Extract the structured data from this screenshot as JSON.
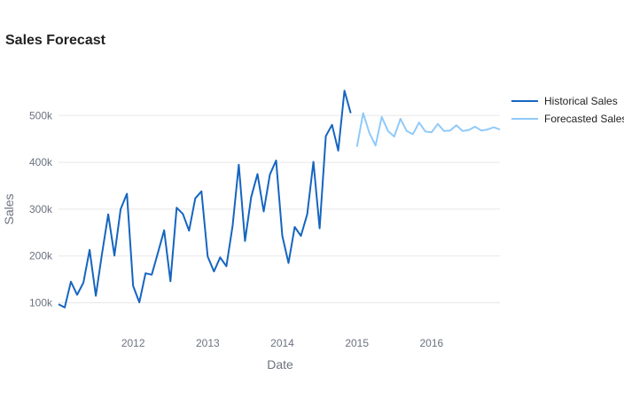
{
  "chart_data": {
    "type": "line",
    "title": "Sales Forecast",
    "xlabel": "Date",
    "ylabel": "Sales",
    "xlim": [
      "2011-01",
      "2016-12"
    ],
    "ylim": [
      65000,
      580000
    ],
    "x_ticks": [
      {
        "label": "2012",
        "date": "2012-01"
      },
      {
        "label": "2013",
        "date": "2013-01"
      },
      {
        "label": "2014",
        "date": "2014-01"
      },
      {
        "label": "2015",
        "date": "2015-01"
      },
      {
        "label": "2016",
        "date": "2016-01"
      }
    ],
    "y_ticks": [
      {
        "label": "100k",
        "value": 100000
      },
      {
        "label": "200k",
        "value": 200000
      },
      {
        "label": "300k",
        "value": 300000
      },
      {
        "label": "400k",
        "value": 400000
      },
      {
        "label": "500k",
        "value": 500000
      }
    ],
    "grid": true,
    "legend": "right",
    "series": [
      {
        "name": "Historical Sales",
        "color": "#1565c0",
        "points": [
          [
            "2011-01",
            97000
          ],
          [
            "2011-02",
            90000
          ],
          [
            "2011-03",
            145000
          ],
          [
            "2011-04",
            117000
          ],
          [
            "2011-05",
            143000
          ],
          [
            "2011-06",
            213000
          ],
          [
            "2011-07",
            115000
          ],
          [
            "2011-08",
            205000
          ],
          [
            "2011-09",
            289000
          ],
          [
            "2011-10",
            201000
          ],
          [
            "2011-11",
            300000
          ],
          [
            "2011-12",
            333000
          ],
          [
            "2012-01",
            136000
          ],
          [
            "2012-02",
            101000
          ],
          [
            "2012-03",
            163000
          ],
          [
            "2012-04",
            160000
          ],
          [
            "2012-05",
            207000
          ],
          [
            "2012-06",
            255000
          ],
          [
            "2012-07",
            146000
          ],
          [
            "2012-08",
            303000
          ],
          [
            "2012-09",
            290000
          ],
          [
            "2012-10",
            254000
          ],
          [
            "2012-11",
            323000
          ],
          [
            "2012-12",
            338000
          ],
          [
            "2013-01",
            199000
          ],
          [
            "2013-02",
            167000
          ],
          [
            "2013-03",
            197000
          ],
          [
            "2013-04",
            178000
          ],
          [
            "2013-05",
            264000
          ],
          [
            "2013-06",
            395000
          ],
          [
            "2013-07",
            232000
          ],
          [
            "2013-08",
            326000
          ],
          [
            "2013-09",
            375000
          ],
          [
            "2013-10",
            295000
          ],
          [
            "2013-11",
            374000
          ],
          [
            "2013-12",
            404000
          ],
          [
            "2014-01",
            243000
          ],
          [
            "2014-02",
            185000
          ],
          [
            "2014-03",
            262000
          ],
          [
            "2014-04",
            243000
          ],
          [
            "2014-05",
            289000
          ],
          [
            "2014-06",
            401000
          ],
          [
            "2014-07",
            259000
          ],
          [
            "2014-08",
            456000
          ],
          [
            "2014-09",
            480000
          ],
          [
            "2014-10",
            425000
          ],
          [
            "2014-11",
            553000
          ],
          [
            "2014-12",
            505000
          ]
        ]
      },
      {
        "name": "Forecasted Sales",
        "color": "#90caf9",
        "points": [
          [
            "2015-01",
            433000
          ],
          [
            "2015-02",
            505000
          ],
          [
            "2015-03",
            463000
          ],
          [
            "2015-04",
            436000
          ],
          [
            "2015-05",
            497000
          ],
          [
            "2015-06",
            467000
          ],
          [
            "2015-07",
            455000
          ],
          [
            "2015-08",
            493000
          ],
          [
            "2015-09",
            467000
          ],
          [
            "2015-10",
            460000
          ],
          [
            "2015-11",
            485000
          ],
          [
            "2015-12",
            466000
          ],
          [
            "2016-01",
            464000
          ],
          [
            "2016-02",
            482000
          ],
          [
            "2016-03",
            467000
          ],
          [
            "2016-04",
            468000
          ],
          [
            "2016-05",
            479000
          ],
          [
            "2016-06",
            467000
          ],
          [
            "2016-07",
            469000
          ],
          [
            "2016-08",
            476000
          ],
          [
            "2016-09",
            468000
          ],
          [
            "2016-10",
            470000
          ],
          [
            "2016-11",
            475000
          ],
          [
            "2016-12",
            470000
          ]
        ]
      }
    ]
  }
}
